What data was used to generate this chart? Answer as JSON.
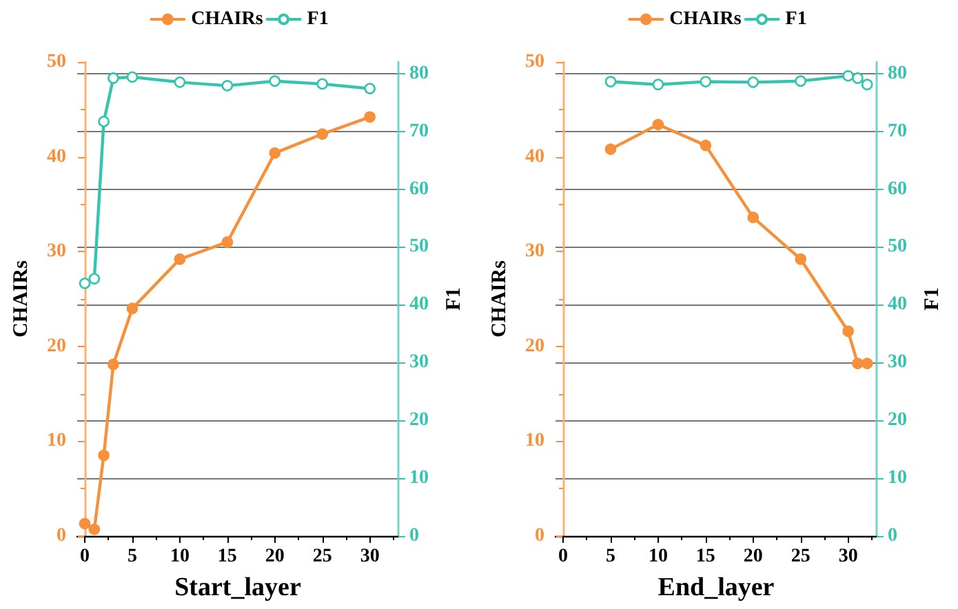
{
  "chart_data": [
    {
      "type": "line",
      "xlabel": "Start_layer",
      "ylabel": "CHAIRs",
      "y2label": "F1",
      "x": [
        0,
        1,
        2,
        3,
        5,
        10,
        15,
        20,
        25,
        30
      ],
      "series": [
        {
          "name": "CHAIRs",
          "color": "#f7903a",
          "values": [
            1.3,
            0.7,
            8.5,
            18.1,
            24.0,
            29.2,
            31.0,
            40.4,
            42.4,
            44.2
          ]
        },
        {
          "name": "F1",
          "color": "#35c4b0",
          "axis": "y2",
          "values": [
            43.7,
            44.5,
            71.7,
            79.2,
            79.4,
            78.5,
            77.9,
            78.7,
            78.2,
            77.4
          ]
        }
      ],
      "xlim": [
        -0.8,
        33
      ],
      "xticks": [
        0,
        5,
        10,
        15,
        20,
        25,
        30
      ],
      "ylim": [
        0,
        50
      ],
      "yticks": [
        0,
        10,
        20,
        30,
        40,
        50
      ],
      "y2lim": [
        0,
        82
      ],
      "y2ticks": [
        0,
        10,
        20,
        30,
        40,
        50,
        60,
        70,
        80
      ],
      "grid": "y",
      "legend": "top",
      "marker": "circle",
      "line_style": "solid"
    },
    {
      "type": "line",
      "xlabel": "End_layer",
      "ylabel": "CHAIRs",
      "y2label": "F1",
      "x": [
        5,
        10,
        15,
        20,
        25,
        30,
        31,
        32
      ],
      "series": [
        {
          "name": "CHAIRs",
          "color": "#f7903a",
          "values": [
            40.8,
            43.4,
            41.2,
            33.6,
            29.2,
            21.6,
            18.2,
            18.2
          ]
        },
        {
          "name": "F1",
          "color": "#35c4b0",
          "axis": "y2",
          "values": [
            78.6,
            78.1,
            78.6,
            78.5,
            78.7,
            79.6,
            79.2,
            78.1
          ]
        }
      ],
      "xlim": [
        -0.8,
        33
      ],
      "xticks": [
        0,
        5,
        10,
        15,
        20,
        25,
        30
      ],
      "ylim": [
        0,
        50
      ],
      "yticks": [
        0,
        10,
        20,
        30,
        40,
        50
      ],
      "y2lim": [
        0,
        82
      ],
      "y2ticks": [
        0,
        10,
        20,
        30,
        40,
        50,
        60,
        70,
        80
      ],
      "grid": "y",
      "legend": "top",
      "marker": "circle",
      "line_style": "solid"
    }
  ]
}
